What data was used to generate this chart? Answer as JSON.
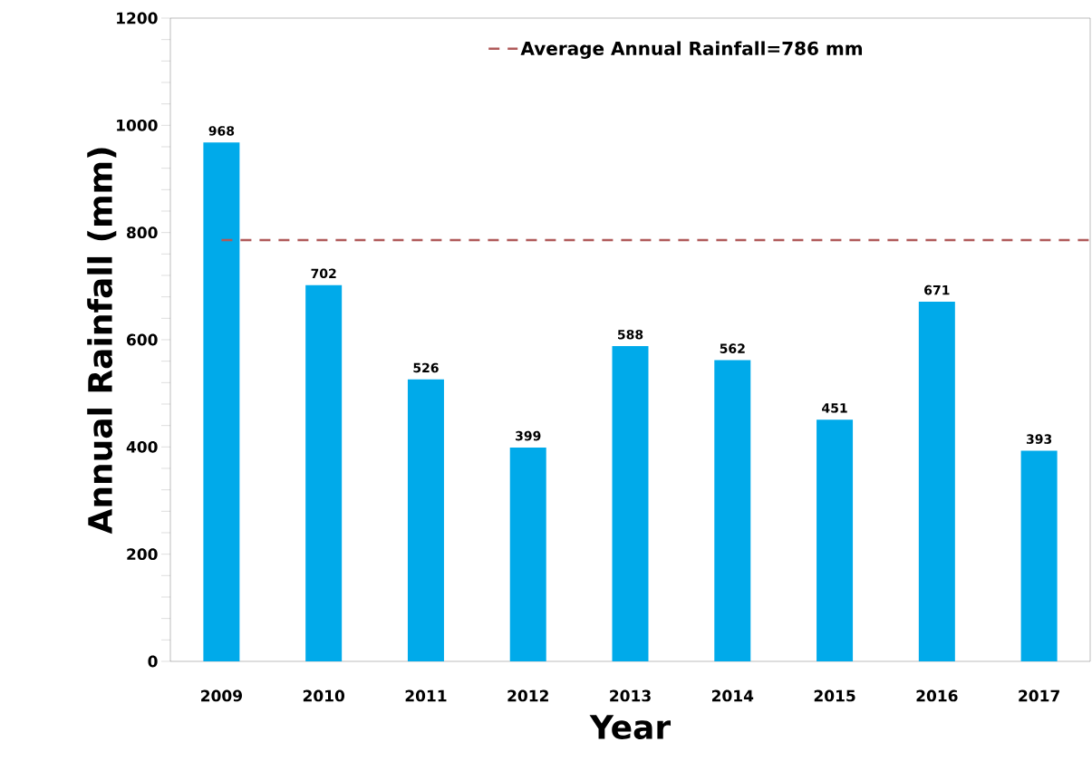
{
  "chart_data": {
    "type": "bar",
    "xlabel": "Year",
    "ylabel": "Annual Rainfall (mm)",
    "categories": [
      "2009",
      "2010",
      "2011",
      "2012",
      "2013",
      "2014",
      "2015",
      "2016",
      "2017"
    ],
    "values": [
      968,
      702,
      526,
      399,
      588,
      562,
      451,
      671,
      393
    ],
    "color": "#00aaea",
    "ylim": [
      0,
      1200
    ],
    "yticks": [
      0,
      200,
      400,
      600,
      800,
      1000,
      1200
    ],
    "data_labels": true,
    "ref_lines": [
      {
        "axis": "y",
        "value": 786,
        "label": "Average Annual Rainfall=786 mm",
        "color": "#b05a5a",
        "line_style": "dashed"
      }
    ]
  }
}
